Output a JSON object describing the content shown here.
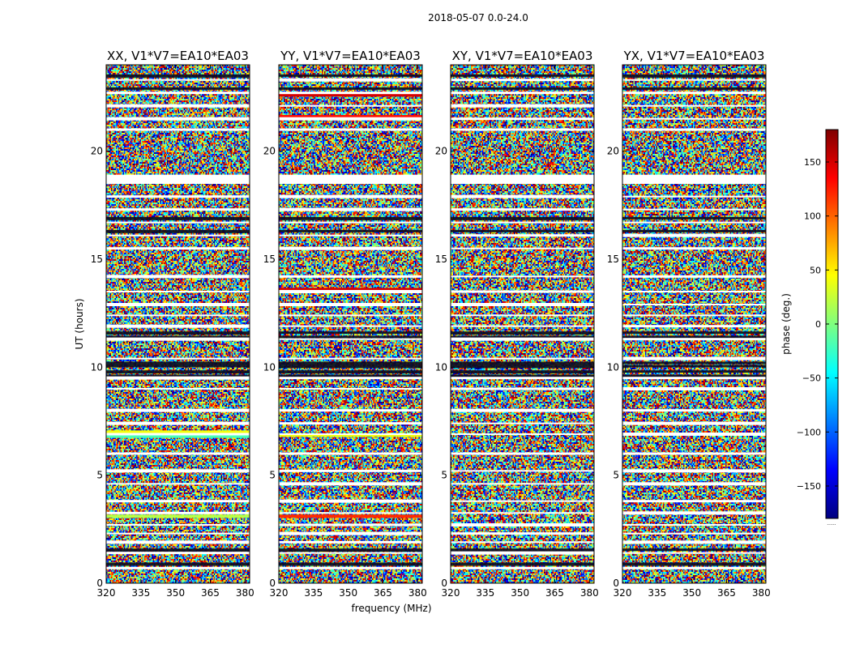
{
  "figure": {
    "suptitle": "2018-05-07 0.0-24.0",
    "xlabel": "frequency (MHz)",
    "ylabel": "UT (hours)",
    "colorbar_label": "phase (deg.)",
    "colorbar_footnote": "......"
  },
  "chart_data": {
    "type": "heatmap",
    "colormap": "jet",
    "colorscale": [
      "#00007f",
      "#0000ff",
      "#007fff",
      "#00ffff",
      "#7fff7f",
      "#ffff00",
      "#ff7f00",
      "#ff0000",
      "#7f0000"
    ],
    "xlim": [
      320,
      382
    ],
    "ylim": [
      0,
      24
    ],
    "xticks": [
      "320",
      "335",
      "350",
      "365",
      "380"
    ],
    "xtick_values": [
      320,
      335,
      350,
      365,
      380
    ],
    "yticks": [
      "0",
      "5",
      "10",
      "15",
      "20"
    ],
    "ytick_values": [
      0,
      5,
      10,
      15,
      20
    ],
    "colorbar_range": [
      -180,
      180
    ],
    "colorbar_ticks": [
      "150",
      "100",
      "50",
      "0",
      "−50",
      "−100",
      "−150"
    ],
    "colorbar_tick_values": [
      150,
      100,
      50,
      0,
      -50,
      -100,
      -150
    ],
    "flagged_white_bands_ut": [
      0.7,
      1.4,
      1.9,
      2.3,
      2.7,
      3.25,
      3.8,
      4.6,
      5.2,
      6.0,
      6.9,
      7.4,
      8.0,
      9.0,
      9.5,
      10.4,
      11.3,
      11.9,
      12.4,
      12.9,
      13.5,
      14.2,
      15.5,
      16.1,
      16.7,
      17.3,
      17.9,
      18.6,
      18.8,
      21.0,
      21.5,
      22.1,
      22.7,
      23.3
    ],
    "dark_bands_ut": [
      0.9,
      1.55,
      9.6,
      9.8,
      10.05,
      10.2,
      11.4,
      11.6,
      16.3,
      16.9,
      22.9,
      23.5
    ],
    "panels": [
      {
        "title": "XX, V1*V7=EA10*EA03",
        "extra_bands": [
          {
            "ut": 3.1,
            "phase": 20
          },
          {
            "ut": 6.8,
            "phase": -20
          },
          {
            "ut": 7.0,
            "phase": 40
          }
        ]
      },
      {
        "title": "YY, V1*V7=EA10*EA03",
        "extra_bands": [
          {
            "ut": 3.1,
            "phase": 120
          },
          {
            "ut": 6.85,
            "phase": 40
          },
          {
            "ut": 13.6,
            "phase": 150
          },
          {
            "ut": 21.6,
            "phase": 130
          },
          {
            "ut": 22.6,
            "phase": 150
          }
        ]
      },
      {
        "title": "XY, V1*V7=EA10*EA03",
        "extra_bands": []
      },
      {
        "title": "YX, V1*V7=EA10*EA03",
        "extra_bands": []
      }
    ]
  }
}
